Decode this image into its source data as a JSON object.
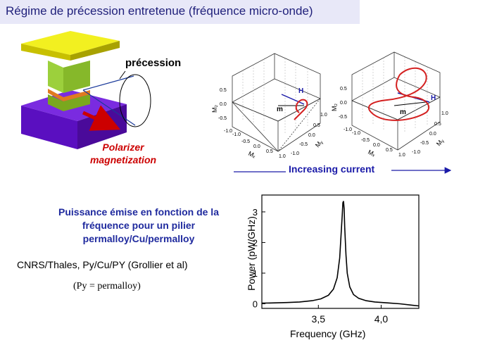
{
  "title": "Régime de précession entretenue (fréquence micro-onde)",
  "device": {
    "precession_label": "précession",
    "polarizer_line1": "Polarizer",
    "polarizer_line2": "magnetization"
  },
  "plots3d": {
    "axis_labels": {
      "mz": "M₂",
      "mx": "Mₓ",
      "my": "Mᵧ"
    },
    "vector_labels": {
      "m": "m",
      "h": "H"
    },
    "z_ticks": [
      "0.5",
      "0.0",
      "-0.5",
      "-1.0"
    ],
    "x_ticks": [
      "-1.0",
      "-0.5",
      "0.0",
      "0.5",
      "1.0"
    ],
    "y_ticks": [
      "1.0",
      "0.5",
      "0.0",
      "-0.5",
      "-1.0"
    ]
  },
  "increasing_current": "Increasing current",
  "caption": "Puissance émise en fonction de la fréquence pour un pilier permalloy/Cu/permalloy",
  "credit": "CNRS/Thales, Py/Cu/PY (Grollier et al)",
  "note": "(Py = permalloy)",
  "colors": {
    "title_bg": "#e8e8f8",
    "title_text": "#1f1f7a",
    "caption_text": "#1f2a9e",
    "polarizer": "#cc0000",
    "trajectory": "#d42020"
  },
  "chart_data": {
    "type": "line",
    "xlabel": "Frequency (GHz)",
    "ylabel": "Power (pW/GHz)",
    "x_ticks": [
      "3,5",
      "4,0"
    ],
    "y_ticks": [
      "0",
      "1",
      "2",
      "3"
    ],
    "xlim": [
      3.05,
      4.3
    ],
    "ylim": [
      -0.15,
      3.55
    ],
    "series": [
      {
        "x": [
          3.05,
          3.15,
          3.25,
          3.35,
          3.45,
          3.52,
          3.58,
          3.62,
          3.65,
          3.67,
          3.68,
          3.69,
          3.695,
          3.7,
          3.705,
          3.71,
          3.72,
          3.73,
          3.75,
          3.78,
          3.82,
          3.88,
          3.95,
          4.05,
          4.15,
          4.25,
          4.3
        ],
        "y": [
          0.02,
          0.03,
          0.04,
          0.06,
          0.1,
          0.16,
          0.28,
          0.48,
          0.85,
          1.5,
          2.2,
          2.9,
          3.3,
          3.35,
          3.1,
          2.5,
          1.6,
          1.0,
          0.55,
          0.3,
          0.18,
          0.1,
          0.06,
          0.03,
          0.0,
          -0.05,
          -0.07
        ]
      }
    ]
  }
}
